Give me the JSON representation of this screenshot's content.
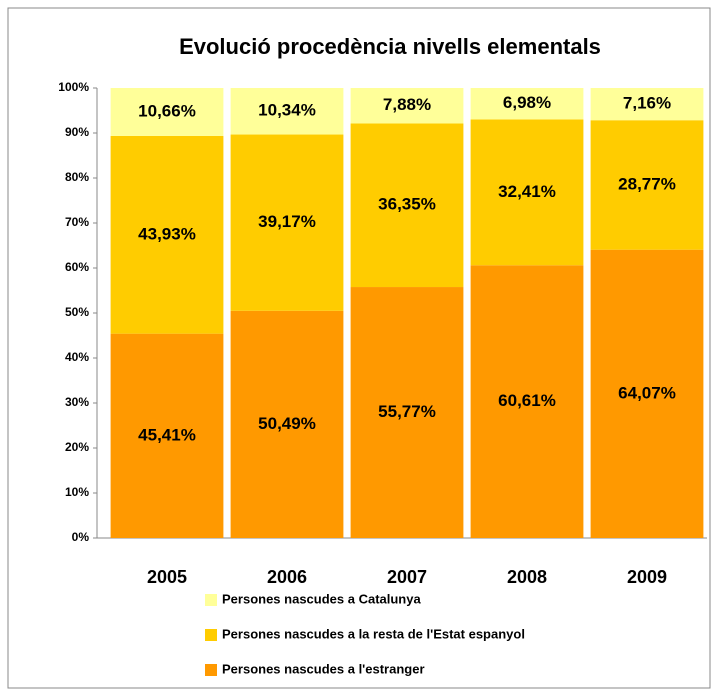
{
  "chart_data": {
    "type": "stacked_bar",
    "title": "Evolució procedència nivells elementals",
    "categories": [
      "2005",
      "2006",
      "2007",
      "2008",
      "2009"
    ],
    "series": [
      {
        "name": "Persones nascudes a l'estranger",
        "color": "#ff9900",
        "values": [
          45.41,
          50.49,
          55.77,
          60.61,
          64.07
        ],
        "value_labels": [
          "45,41%",
          "50,49%",
          "55,77%",
          "60,61%",
          "64,07%"
        ]
      },
      {
        "name": "Persones nascudes a la resta de l'Estat espanyol",
        "color": "#ffcc00",
        "values": [
          43.93,
          39.17,
          36.35,
          32.41,
          28.77
        ],
        "value_labels": [
          "43,93%",
          "39,17%",
          "36,35%",
          "32,41%",
          "28,77%"
        ]
      },
      {
        "name": "Persones nascudes a Catalunya",
        "color": "#ffff99",
        "values": [
          10.66,
          10.34,
          7.88,
          6.98,
          7.16
        ],
        "value_labels": [
          "10,66%",
          "10,34%",
          "7,88%",
          "6,98%",
          "7,16%"
        ]
      }
    ],
    "ylim": [
      0,
      100
    ],
    "yticks": [
      {
        "value": 0,
        "label": "0%"
      },
      {
        "value": 10,
        "label": "10%"
      },
      {
        "value": 20,
        "label": "20%"
      },
      {
        "value": 30,
        "label": "30%"
      },
      {
        "value": 40,
        "label": "40%"
      },
      {
        "value": 50,
        "label": "50%"
      },
      {
        "value": 60,
        "label": "60%"
      },
      {
        "value": 70,
        "label": "70%"
      },
      {
        "value": 80,
        "label": "80%"
      },
      {
        "value": 90,
        "label": "90%"
      },
      {
        "value": 100,
        "label": "100%"
      }
    ],
    "grid": false,
    "legend": "bottom"
  }
}
